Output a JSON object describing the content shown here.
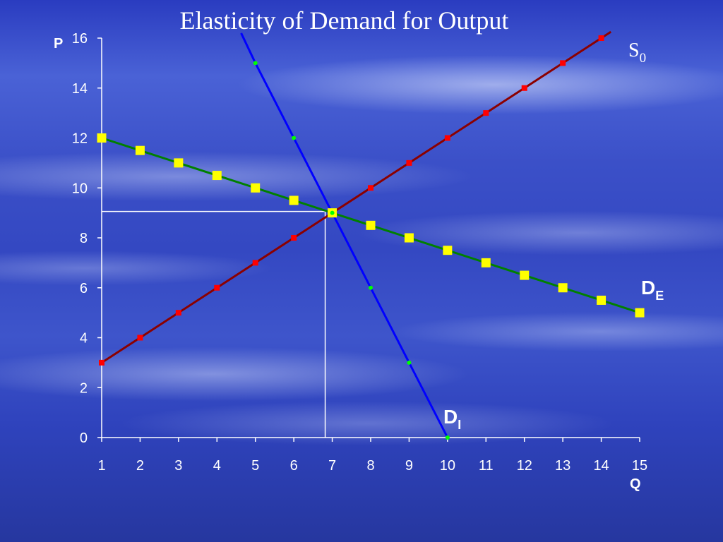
{
  "chart_data": {
    "type": "line",
    "title": "Elasticity of Demand for Output",
    "xlabel": "Q",
    "ylabel": "P",
    "xlim": [
      1,
      15
    ],
    "ylim": [
      0,
      16
    ],
    "x_ticks": [
      1,
      2,
      3,
      4,
      5,
      6,
      7,
      8,
      9,
      10,
      11,
      12,
      13,
      14,
      15
    ],
    "y_ticks": [
      0,
      2,
      4,
      6,
      8,
      10,
      12,
      14,
      16
    ],
    "equilibrium": {
      "x": 7,
      "y": 9
    },
    "series": [
      {
        "name": "S0",
        "label_main": "S",
        "label_sub": "0",
        "line_color": "#8b0000",
        "marker_color": "#ff0000",
        "marker": "square-small",
        "x": [
          1,
          2,
          3,
          4,
          5,
          6,
          7,
          8,
          9,
          10,
          11,
          12,
          13,
          14
        ],
        "y": [
          3,
          4,
          5,
          6,
          7,
          8,
          9,
          10,
          11,
          12,
          13,
          14,
          15,
          16
        ]
      },
      {
        "name": "DE",
        "label_main": "D",
        "label_sub": "E",
        "line_color": "#008000",
        "marker_color": "#ffff00",
        "marker": "square",
        "x": [
          1,
          2,
          3,
          4,
          5,
          6,
          7,
          8,
          9,
          10,
          11,
          12,
          13,
          14,
          15
        ],
        "y": [
          12,
          11.5,
          11,
          10.5,
          10,
          9.5,
          9,
          8.5,
          8,
          7.5,
          7,
          6.5,
          6,
          5.5,
          5
        ]
      },
      {
        "name": "DI",
        "label_main": "D",
        "label_sub": "I",
        "line_color": "#0000ff",
        "marker_color": "#00ff00",
        "marker": "dot",
        "x": [
          5,
          6,
          7,
          8,
          9,
          10
        ],
        "y": [
          15,
          12,
          9,
          6,
          3,
          0
        ]
      }
    ]
  }
}
